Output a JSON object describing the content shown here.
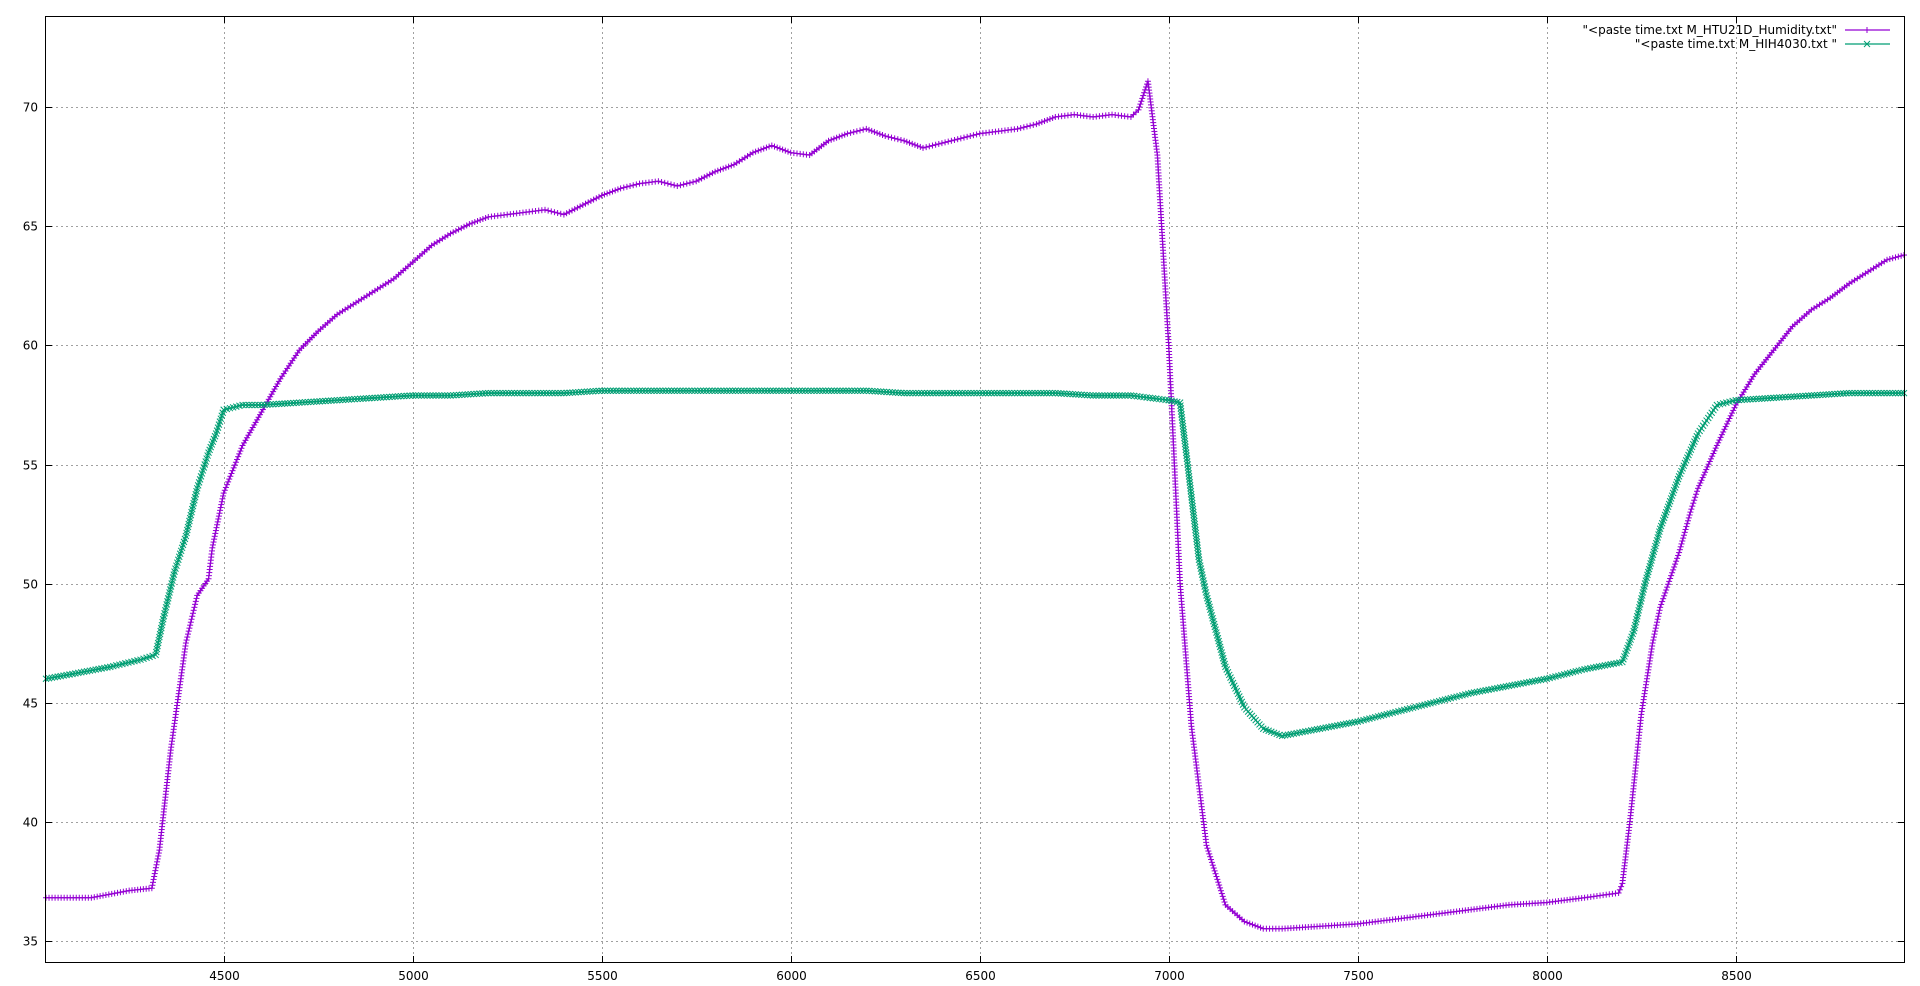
{
  "chart_data": {
    "type": "line",
    "title": "",
    "xlabel": "",
    "ylabel": "",
    "xlim": [
      4030,
      8945
    ],
    "ylim": [
      34.1,
      73.8
    ],
    "grid": true,
    "legend_position": "top-right",
    "xticks": [
      4500,
      5000,
      5500,
      6000,
      6500,
      7000,
      7500,
      8000,
      8500
    ],
    "yticks": [
      35,
      40,
      45,
      50,
      55,
      60,
      65,
      70
    ],
    "series": [
      {
        "name": "\"<paste time.txt M_HTU21D_Humidity.txt\"",
        "color": "#9400d3",
        "marker": "plus",
        "x": [
          4030,
          4150,
          4250,
          4310,
          4330,
          4360,
          4400,
          4430,
          4460,
          4470,
          4500,
          4550,
          4600,
          4650,
          4700,
          4750,
          4800,
          4850,
          4900,
          4950,
          5000,
          5050,
          5100,
          5150,
          5200,
          5250,
          5300,
          5350,
          5400,
          5450,
          5500,
          5550,
          5600,
          5650,
          5700,
          5750,
          5800,
          5850,
          5900,
          5950,
          6000,
          6050,
          6100,
          6150,
          6200,
          6250,
          6300,
          6350,
          6400,
          6450,
          6500,
          6550,
          6600,
          6650,
          6700,
          6750,
          6800,
          6850,
          6900,
          6920,
          6945,
          6970,
          7000,
          7030,
          7060,
          7100,
          7150,
          7200,
          7250,
          7300,
          7400,
          7500,
          7600,
          7700,
          7800,
          7900,
          8000,
          8100,
          8190,
          8200,
          8220,
          8250,
          8280,
          8300,
          8350,
          8380,
          8400,
          8450,
          8500,
          8550,
          8600,
          8650,
          8700,
          8750,
          8800,
          8850,
          8900,
          8945
        ],
        "y": [
          36.8,
          36.8,
          37.1,
          37.2,
          38.8,
          43.0,
          47.5,
          49.5,
          50.2,
          51.5,
          53.8,
          55.8,
          57.2,
          58.6,
          59.8,
          60.6,
          61.3,
          61.8,
          62.3,
          62.8,
          63.5,
          64.2,
          64.7,
          65.1,
          65.4,
          65.5,
          65.6,
          65.7,
          65.5,
          65.9,
          66.3,
          66.6,
          66.8,
          66.9,
          66.7,
          66.9,
          67.3,
          67.6,
          68.1,
          68.4,
          68.1,
          68.0,
          68.6,
          68.9,
          69.1,
          68.8,
          68.6,
          68.3,
          68.5,
          68.7,
          68.9,
          69.0,
          69.1,
          69.3,
          69.6,
          69.7,
          69.6,
          69.7,
          69.6,
          69.9,
          71.1,
          68.0,
          60.0,
          50.0,
          44.0,
          39.0,
          36.5,
          35.8,
          35.5,
          35.5,
          35.6,
          35.7,
          35.9,
          36.1,
          36.3,
          36.5,
          36.6,
          36.8,
          37.0,
          37.4,
          40.0,
          44.5,
          47.5,
          49.0,
          51.3,
          53.0,
          54.0,
          55.8,
          57.5,
          58.8,
          59.8,
          60.8,
          61.5,
          62.0,
          62.6,
          63.1,
          63.6,
          63.8
        ]
      },
      {
        "name": "\"<paste time.txt M_HIH4030.txt \"",
        "color": "#009e73",
        "marker": "cross",
        "x": [
          4030,
          4100,
          4200,
          4280,
          4320,
          4340,
          4370,
          4400,
          4430,
          4460,
          4480,
          4500,
          4550,
          4600,
          4700,
          4800,
          4900,
          5000,
          5100,
          5200,
          5300,
          5400,
          5500,
          5600,
          5700,
          5800,
          5900,
          6000,
          6100,
          6200,
          6300,
          6400,
          6500,
          6600,
          6700,
          6800,
          6900,
          6950,
          7000,
          7030,
          7050,
          7080,
          7100,
          7150,
          7200,
          7250,
          7300,
          7400,
          7500,
          7600,
          7700,
          7800,
          7900,
          8000,
          8100,
          8200,
          8230,
          8260,
          8300,
          8350,
          8400,
          8450,
          8500,
          8600,
          8700,
          8800,
          8900,
          8945
        ],
        "y": [
          46.0,
          46.2,
          46.5,
          46.8,
          47.0,
          48.5,
          50.5,
          52.0,
          54.0,
          55.5,
          56.3,
          57.3,
          57.5,
          57.5,
          57.6,
          57.7,
          57.8,
          57.9,
          57.9,
          58.0,
          58.0,
          58.0,
          58.1,
          58.1,
          58.1,
          58.1,
          58.1,
          58.1,
          58.1,
          58.1,
          58.0,
          58.0,
          58.0,
          58.0,
          58.0,
          57.9,
          57.9,
          57.8,
          57.7,
          57.6,
          55.0,
          51.0,
          49.5,
          46.5,
          44.8,
          43.9,
          43.6,
          43.9,
          44.2,
          44.6,
          45.0,
          45.4,
          45.7,
          46.0,
          46.4,
          46.7,
          48.0,
          50.0,
          52.3,
          54.5,
          56.3,
          57.5,
          57.7,
          57.8,
          57.9,
          58.0,
          58.0,
          58.0
        ]
      }
    ]
  }
}
